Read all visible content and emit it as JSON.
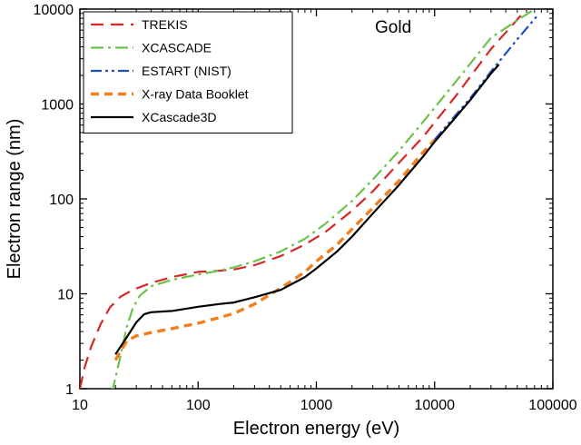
{
  "chart_data": {
    "type": "line",
    "title": "",
    "annotation": "Gold",
    "xlabel": "Electron energy (eV)",
    "ylabel": "Electron range (nm)",
    "xscale": "log",
    "yscale": "log",
    "xlim": [
      10,
      100000
    ],
    "ylim": [
      1,
      10000
    ],
    "xticks": [
      10,
      100,
      1000,
      10000,
      100000
    ],
    "xtick_labels": [
      "10",
      "100",
      "1000",
      "10000",
      "100000"
    ],
    "yticks": [
      1,
      10,
      100,
      1000,
      10000
    ],
    "ytick_labels": [
      "1",
      "10",
      "100",
      "1000",
      "10000"
    ],
    "legend_position": "top-left",
    "series": [
      {
        "name": "TREKIS",
        "color": "#d62728",
        "style": "dashed",
        "x": [
          10,
          11,
          12.5,
          15,
          18,
          22,
          28,
          40,
          60,
          100,
          150,
          200,
          300,
          500,
          800,
          1200,
          2000,
          3000,
          5000,
          8000,
          15000,
          30000,
          60000
        ],
        "y": [
          1,
          1.7,
          2.8,
          4.8,
          7.2,
          9.3,
          11,
          13,
          15,
          17,
          17.5,
          18,
          20,
          25,
          33,
          45,
          75,
          120,
          240,
          450,
          1200,
          3800,
          10000
        ]
      },
      {
        "name": "XCASCADE",
        "color": "#6cc24a",
        "style": "dashdot",
        "x": [
          18,
          19,
          20,
          22,
          25,
          28,
          32,
          40,
          60,
          100,
          150,
          200,
          300,
          500,
          800,
          1200,
          2000,
          3000,
          5000,
          8000,
          15000,
          30000,
          70000
        ],
        "y": [
          0.95,
          1,
          1.3,
          2.2,
          4.5,
          7,
          9.5,
          12,
          14,
          16,
          17.5,
          19,
          22,
          28,
          38,
          55,
          95,
          160,
          320,
          650,
          1700,
          5000,
          10000
        ]
      },
      {
        "name": "ESTART (NIST)",
        "color": "#1f4fbf",
        "style": "dashdotdot",
        "x": [
          10000,
          15000,
          20000,
          30000,
          50000,
          75000
        ],
        "y": [
          420,
          760,
          1150,
          2200,
          4800,
          8700
        ]
      },
      {
        "name": "X-ray Data Booklet",
        "color": "#f07f1e",
        "style": "dashed-bold",
        "x": [
          20,
          25,
          30,
          40,
          60,
          100,
          150,
          200,
          300,
          500,
          800,
          1000,
          1500,
          2000,
          3000,
          5000,
          8000,
          10000
        ],
        "y": [
          2,
          3.2,
          3.6,
          3.9,
          4.3,
          4.9,
          5.6,
          6.2,
          7.8,
          11.5,
          17,
          22,
          33,
          48,
          80,
          155,
          310,
          420
        ]
      },
      {
        "name": "XCascade3D",
        "color": "#000000",
        "style": "solid",
        "x": [
          20,
          25,
          30,
          35,
          40,
          60,
          100,
          150,
          200,
          300,
          500,
          800,
          1000,
          1500,
          2000,
          3000,
          5000,
          8000,
          10000,
          15000,
          20000,
          30000,
          35000
        ],
        "y": [
          2.3,
          3.5,
          5,
          6.1,
          6.4,
          6.6,
          7.3,
          7.8,
          8.1,
          9.2,
          11,
          15,
          18.5,
          28,
          40,
          70,
          140,
          280,
          400,
          720,
          1100,
          2100,
          2600
        ]
      }
    ]
  }
}
